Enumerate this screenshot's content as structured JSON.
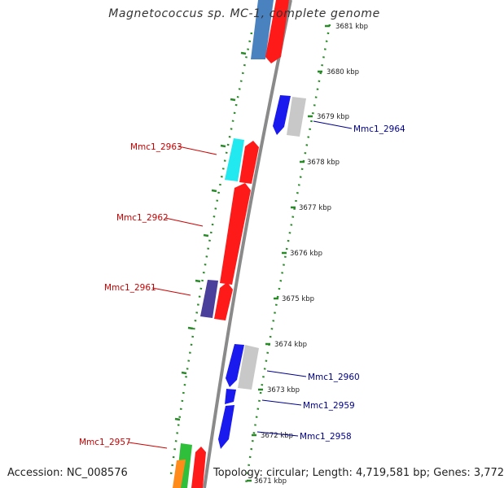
{
  "title": "Magnetococcus sp. MC-1, complete genome",
  "footer": {
    "accession": "Accession: NC_008576",
    "summary": "Topology: circular; Length: 4,719,581 bp; Genes: 3,772"
  },
  "colors": {
    "forward_red": "#ff1a1a",
    "reverse_blue": "#1a1aee",
    "steel_blue": "#4a82c0",
    "gray_gene": "#c8c8c8",
    "cyan_gene": "#22e8f0",
    "purple_gene": "#4a3f9a",
    "green_gene": "#2fbf3a",
    "orange_gene": "#ff8c1a",
    "backbone": "#8a8a8a",
    "dotted_track": "#2a8a2a",
    "label_forward": "#cc0000",
    "label_reverse": "#00008b"
  },
  "scale_ticks": [
    {
      "label": "3681 kbp"
    },
    {
      "label": "3680 kbp"
    },
    {
      "label": "3679 kbp"
    },
    {
      "label": "3678 kbp"
    },
    {
      "label": "3677 kbp"
    },
    {
      "label": "3676 kbp"
    },
    {
      "label": "3675 kbp"
    },
    {
      "label": "3674 kbp"
    },
    {
      "label": "3673 kbp"
    },
    {
      "label": "3672 kbp"
    },
    {
      "label": "3671 kbp"
    }
  ],
  "gene_labels": {
    "forward": [
      "Mmc1_2963",
      "Mmc1_2962",
      "Mmc1_2961",
      "Mmc1_2957"
    ],
    "reverse": [
      "Mmc1_2964",
      "Mmc1_2960",
      "Mmc1_2959",
      "Mmc1_2958"
    ]
  }
}
